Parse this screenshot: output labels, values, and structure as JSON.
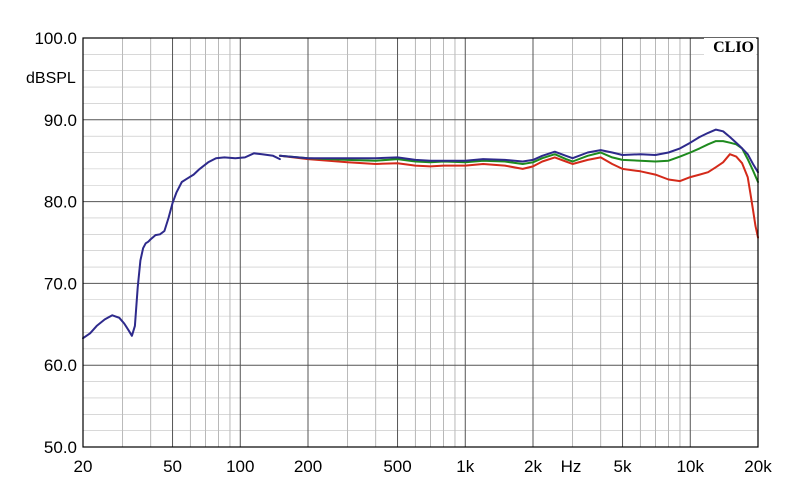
{
  "chart_data": {
    "type": "line",
    "brand": "CLIO",
    "ylabel": "dBSPL",
    "xlabel": "Hz",
    "x_scale": "log",
    "xlim": [
      20,
      20000
    ],
    "ylim": [
      50,
      100
    ],
    "grid": true,
    "x_major_ticks": [
      {
        "value": 20,
        "label": "20"
      },
      {
        "value": 50,
        "label": "50"
      },
      {
        "value": 100,
        "label": "100"
      },
      {
        "value": 200,
        "label": "200"
      },
      {
        "value": 500,
        "label": "500"
      },
      {
        "value": 1000,
        "label": "1k"
      },
      {
        "value": 2000,
        "label": "2k"
      },
      {
        "value": 5000,
        "label": "5k"
      },
      {
        "value": 10000,
        "label": "10k"
      },
      {
        "value": 20000,
        "label": "20k"
      }
    ],
    "y_ticks": [
      {
        "value": 100,
        "label": "100.0"
      },
      {
        "value": 90,
        "label": "90.0"
      },
      {
        "value": 80,
        "label": "80.0"
      },
      {
        "value": 70,
        "label": "70.0"
      },
      {
        "value": 60,
        "label": "60.0"
      },
      {
        "value": 50,
        "label": "50.0"
      }
    ],
    "series": [
      {
        "color": "#2e2a8c",
        "x": [
          20,
          21.5,
          23,
          25,
          27,
          29,
          30.5,
          32,
          33,
          34,
          35,
          36,
          37,
          38,
          39,
          40,
          42,
          44,
          46,
          48,
          50,
          52,
          55,
          58,
          62,
          66,
          72,
          78,
          85,
          95,
          105,
          115,
          125,
          140,
          150
        ],
        "y": [
          63.3,
          63.9,
          64.8,
          65.6,
          66.1,
          65.8,
          65.1,
          64.2,
          63.6,
          64.8,
          69.5,
          72.8,
          74.3,
          74.9,
          75.1,
          75.4,
          75.9,
          76.0,
          76.4,
          78.0,
          79.8,
          81.1,
          82.4,
          82.8,
          83.3,
          84.0,
          84.8,
          85.3,
          85.4,
          85.3,
          85.4,
          85.9,
          85.8,
          85.6,
          85.2
        ]
      },
      {
        "color": "#2e2a8c",
        "x": [
          150,
          200,
          300,
          400,
          500,
          600,
          700,
          800,
          1000,
          1200,
          1500,
          1800,
          2000,
          2200,
          2500,
          2800,
          3000,
          3500,
          4000,
          4500,
          5000,
          6000,
          7000,
          8000,
          9000,
          10000,
          11000,
          12000,
          13000,
          14000,
          15000,
          16000,
          17000,
          18000,
          19000,
          20000
        ],
        "y": [
          85.6,
          85.3,
          85.3,
          85.3,
          85.4,
          85.1,
          85.0,
          85.0,
          85.0,
          85.2,
          85.1,
          84.9,
          85.1,
          85.6,
          86.1,
          85.6,
          85.3,
          86.0,
          86.3,
          86.0,
          85.7,
          85.8,
          85.7,
          86.0,
          86.5,
          87.2,
          87.9,
          88.4,
          88.8,
          88.6,
          87.9,
          87.2,
          86.5,
          85.8,
          84.6,
          83.6
        ]
      },
      {
        "color": "#1e8a1e",
        "x": [
          150,
          200,
          300,
          400,
          500,
          600,
          700,
          800,
          1000,
          1200,
          1500,
          1800,
          2000,
          2200,
          2500,
          2800,
          3000,
          3500,
          4000,
          4500,
          5000,
          6000,
          7000,
          8000,
          9000,
          10000,
          11000,
          12000,
          13000,
          14000,
          15000,
          16000,
          17000,
          18000,
          19000,
          20000
        ],
        "y": [
          85.6,
          85.3,
          85.1,
          85.0,
          85.2,
          84.9,
          84.8,
          84.9,
          84.8,
          85.0,
          84.9,
          84.6,
          84.8,
          85.3,
          85.8,
          85.2,
          84.9,
          85.6,
          86.0,
          85.4,
          85.1,
          85.0,
          84.9,
          85.0,
          85.5,
          86.0,
          86.5,
          87.0,
          87.4,
          87.4,
          87.2,
          87.0,
          86.5,
          85.2,
          83.8,
          82.4
        ]
      },
      {
        "color": "#d42a1a",
        "x": [
          150,
          200,
          300,
          400,
          500,
          600,
          700,
          800,
          1000,
          1200,
          1500,
          1800,
          2000,
          2200,
          2500,
          2800,
          3000,
          3500,
          4000,
          4500,
          5000,
          6000,
          7000,
          8000,
          9000,
          10000,
          11000,
          12000,
          13000,
          14000,
          15000,
          16000,
          17000,
          18000,
          18500,
          19000,
          19500,
          20000
        ],
        "y": [
          85.6,
          85.2,
          84.8,
          84.6,
          84.7,
          84.4,
          84.3,
          84.4,
          84.4,
          84.6,
          84.4,
          84.0,
          84.3,
          84.9,
          85.4,
          84.9,
          84.6,
          85.1,
          85.4,
          84.6,
          84.0,
          83.7,
          83.3,
          82.7,
          82.5,
          83.0,
          83.3,
          83.6,
          84.2,
          84.8,
          85.8,
          85.5,
          84.7,
          83.0,
          81.0,
          79.0,
          77.0,
          75.6
        ]
      }
    ]
  }
}
